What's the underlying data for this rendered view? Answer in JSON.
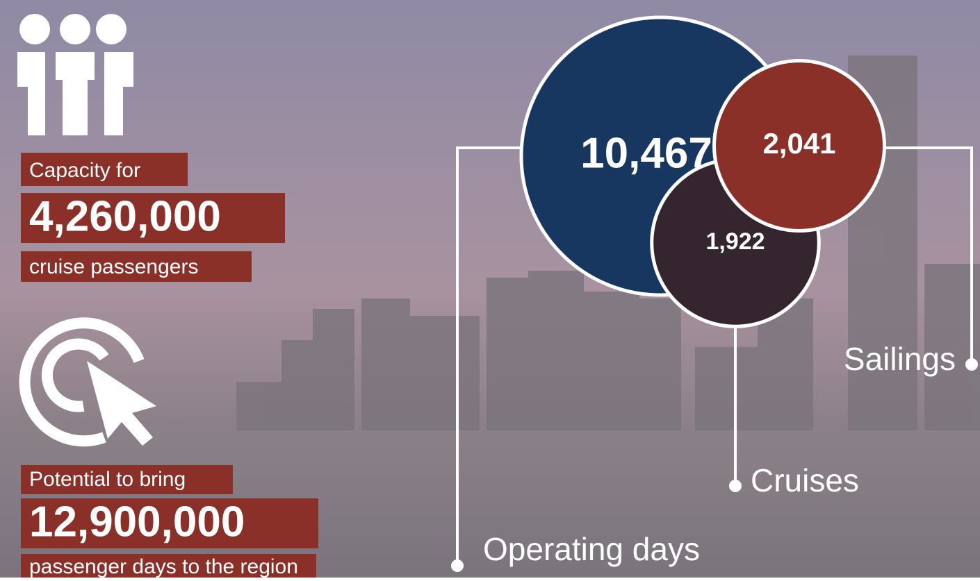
{
  "capacity": {
    "intro": "Capacity for",
    "value": "4,260,000",
    "unit": "cruise passengers"
  },
  "potential": {
    "intro": "Potential to bring",
    "value": "12,900,000",
    "unit": "passenger days to the region"
  },
  "bubbles": [
    {
      "label": "Operating days",
      "value": 10467,
      "value_label": "10,467",
      "color": "#173761"
    },
    {
      "label": "Cruises",
      "value": 1922,
      "value_label": "1,922",
      "color": "#34252f"
    },
    {
      "label": "Sailings",
      "value": 2041,
      "value_label": "2,041",
      "color": "#8b3029"
    }
  ]
}
